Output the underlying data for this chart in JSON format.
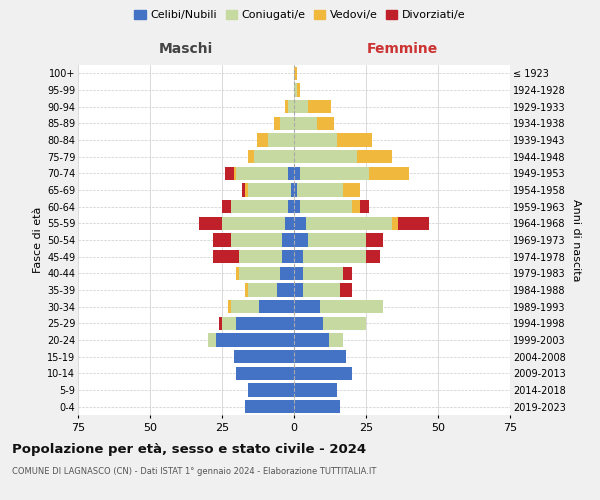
{
  "age_groups": [
    "0-4",
    "5-9",
    "10-14",
    "15-19",
    "20-24",
    "25-29",
    "30-34",
    "35-39",
    "40-44",
    "45-49",
    "50-54",
    "55-59",
    "60-64",
    "65-69",
    "70-74",
    "75-79",
    "80-84",
    "85-89",
    "90-94",
    "95-99",
    "100+"
  ],
  "birth_years": [
    "2019-2023",
    "2014-2018",
    "2009-2013",
    "2004-2008",
    "1999-2003",
    "1994-1998",
    "1989-1993",
    "1984-1988",
    "1979-1983",
    "1974-1978",
    "1969-1973",
    "1964-1968",
    "1959-1963",
    "1954-1958",
    "1949-1953",
    "1944-1948",
    "1939-1943",
    "1934-1938",
    "1929-1933",
    "1924-1928",
    "≤ 1923"
  ],
  "maschi": {
    "celibe": [
      17,
      16,
      20,
      21,
      27,
      20,
      12,
      6,
      5,
      4,
      4,
      3,
      2,
      1,
      2,
      0,
      0,
      0,
      0,
      0,
      0
    ],
    "coniugato": [
      0,
      0,
      0,
      0,
      3,
      5,
      10,
      10,
      14,
      15,
      18,
      22,
      20,
      15,
      18,
      14,
      9,
      5,
      2,
      0,
      0
    ],
    "vedovo": [
      0,
      0,
      0,
      0,
      0,
      0,
      1,
      1,
      1,
      0,
      0,
      0,
      0,
      1,
      1,
      2,
      4,
      2,
      1,
      0,
      0
    ],
    "divorziato": [
      0,
      0,
      0,
      0,
      0,
      1,
      0,
      0,
      0,
      9,
      6,
      8,
      3,
      1,
      3,
      0,
      0,
      0,
      0,
      0,
      0
    ]
  },
  "femmine": {
    "nubile": [
      16,
      15,
      20,
      18,
      12,
      10,
      9,
      3,
      3,
      3,
      5,
      4,
      2,
      1,
      2,
      0,
      0,
      0,
      0,
      0,
      0
    ],
    "coniugata": [
      0,
      0,
      0,
      0,
      5,
      15,
      22,
      13,
      14,
      22,
      20,
      30,
      18,
      16,
      24,
      22,
      15,
      8,
      5,
      1,
      0
    ],
    "vedova": [
      0,
      0,
      0,
      0,
      0,
      0,
      0,
      0,
      0,
      0,
      0,
      2,
      3,
      6,
      14,
      12,
      12,
      6,
      8,
      1,
      1
    ],
    "divorziata": [
      0,
      0,
      0,
      0,
      0,
      0,
      0,
      4,
      3,
      5,
      6,
      11,
      3,
      0,
      0,
      0,
      0,
      0,
      0,
      0,
      0
    ]
  },
  "colors": {
    "celibe": "#4472c4",
    "coniugato": "#c5d9a0",
    "vedovo": "#f0b93e",
    "divorziato": "#c0202a"
  },
  "legend_labels": [
    "Celibi/Nubili",
    "Coniugati/e",
    "Vedovi/e",
    "Divorziati/e"
  ],
  "title": "Popolazione per età, sesso e stato civile - 2024",
  "subtitle": "COMUNE DI LAGNASCO (CN) - Dati ISTAT 1° gennaio 2024 - Elaborazione TUTTITALIA.IT",
  "xlabel_left": "Maschi",
  "xlabel_right": "Femmine",
  "ylabel_left": "Fasce di età",
  "ylabel_right": "Anni di nascita",
  "xlim": 75,
  "bg_color": "#f0f0f0",
  "plot_bg": "#ffffff"
}
